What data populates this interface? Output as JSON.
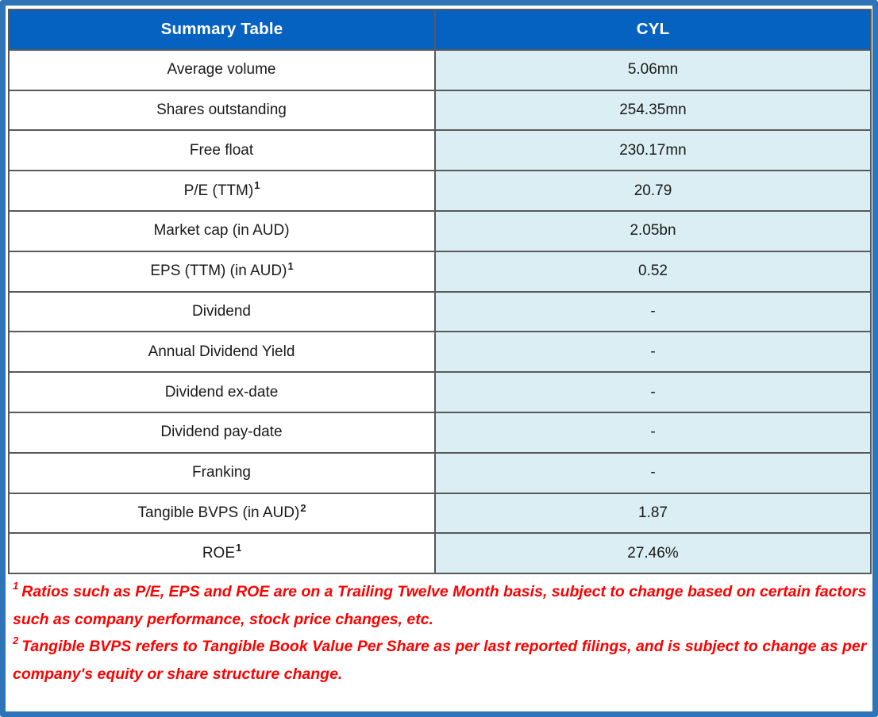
{
  "colors": {
    "outer_border": "#2E74B6",
    "header_bg": "#0562C1",
    "header_text": "#FFFFFF",
    "value_cell_bg": "#DAEEF3",
    "grid_line": "#595959",
    "label_text": "#1A1A1A",
    "footnote_text": "#FF0000"
  },
  "table": {
    "header": {
      "left": "Summary Table",
      "right": "CYL"
    },
    "rows": [
      {
        "label": "Average volume",
        "value": "5.06mn"
      },
      {
        "label": "Shares outstanding",
        "value": "254.35mn"
      },
      {
        "label": "Free float",
        "value": "230.17mn"
      },
      {
        "label": "P/E (TTM)",
        "sup": "1",
        "value": "20.79"
      },
      {
        "label": "Market cap (in AUD)",
        "value": "2.05bn"
      },
      {
        "label": "EPS (TTM) (in AUD)",
        "sup": "1",
        "value": "0.52"
      },
      {
        "label": "Dividend",
        "value": "-"
      },
      {
        "label": "Annual Dividend Yield",
        "value": "-"
      },
      {
        "label": "Dividend ex-date",
        "value": "-"
      },
      {
        "label": "Dividend pay-date",
        "value": "-"
      },
      {
        "label": "Franking",
        "value": "-"
      },
      {
        "label": "Tangible BVPS (in AUD)",
        "sup": "2",
        "value": "1.87"
      },
      {
        "label": "ROE",
        "sup": "1",
        "value": "27.46%"
      }
    ]
  },
  "footnotes": [
    {
      "sup": "1",
      "text": "Ratios such as P/E, EPS and ROE are on a Trailing Twelve Month basis, subject to change based on certain factors such as company performance, stock price changes, etc."
    },
    {
      "sup": "2",
      "text": "Tangible BVPS refers to Tangible Book Value Per Share as per last reported filings, and is subject to change as per company's equity or share structure change."
    }
  ]
}
